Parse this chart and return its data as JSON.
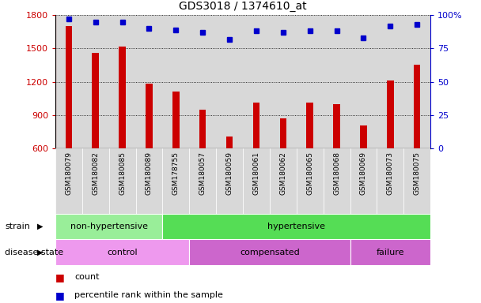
{
  "title": "GDS3018 / 1374610_at",
  "samples": [
    "GSM180079",
    "GSM180082",
    "GSM180085",
    "GSM180089",
    "GSM178755",
    "GSM180057",
    "GSM180059",
    "GSM180061",
    "GSM180062",
    "GSM180065",
    "GSM180068",
    "GSM180069",
    "GSM180073",
    "GSM180075"
  ],
  "counts": [
    1700,
    1460,
    1520,
    1185,
    1115,
    950,
    710,
    1010,
    870,
    1010,
    1000,
    810,
    1215,
    1355
  ],
  "percentile_ranks": [
    97,
    95,
    95,
    90,
    89,
    87,
    82,
    88,
    87,
    88,
    88,
    83,
    92,
    93
  ],
  "ylim_left": [
    600,
    1800
  ],
  "ylim_right": [
    0,
    100
  ],
  "yticks_left": [
    600,
    900,
    1200,
    1500,
    1800
  ],
  "yticks_right": [
    0,
    25,
    50,
    75,
    100
  ],
  "bar_color": "#cc0000",
  "dot_color": "#0000cc",
  "col_bg_color": "#d8d8d8",
  "strain_groups": [
    {
      "label": "non-hypertensive",
      "start": 0,
      "end": 4,
      "color": "#99ee99"
    },
    {
      "label": "hypertensive",
      "start": 4,
      "end": 14,
      "color": "#55dd55"
    }
  ],
  "disease_groups": [
    {
      "label": "control",
      "start": 0,
      "end": 5,
      "color": "#ee99ee"
    },
    {
      "label": "compensated",
      "start": 5,
      "end": 11,
      "color": "#cc66cc"
    },
    {
      "label": "failure",
      "start": 11,
      "end": 14,
      "color": "#cc66cc"
    }
  ],
  "legend_count_label": "count",
  "legend_percentile_label": "percentile rank within the sample",
  "strain_label": "strain",
  "disease_label": "disease state"
}
